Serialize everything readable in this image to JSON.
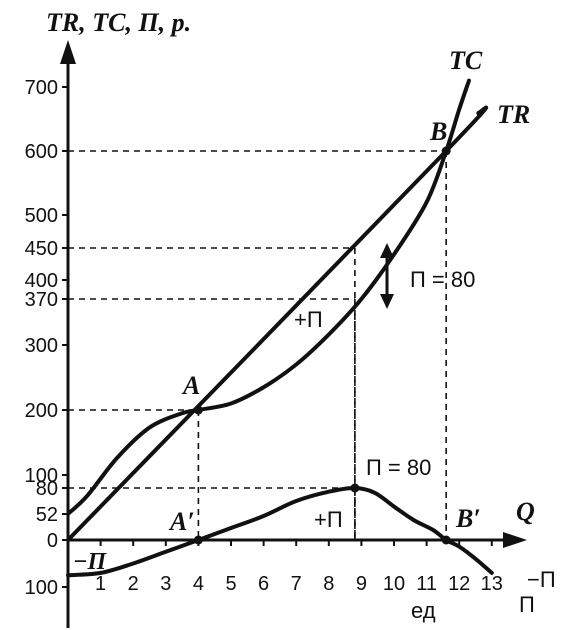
{
  "chart_data": {
    "type": "line",
    "y_title": "TR, TC, П, р.",
    "x_title": "Q",
    "x_unit": "ед",
    "xlim": [
      0,
      13.4
    ],
    "ylim": [
      -100,
      700
    ],
    "x_ticks": [
      "1",
      "2",
      "3",
      "4",
      "5",
      "6",
      "7",
      "8",
      "9",
      "10",
      "11",
      "12",
      "13"
    ],
    "y_ticks": [
      {
        "v": 700,
        "t": "700"
      },
      {
        "v": 600,
        "t": "600"
      },
      {
        "v": 500,
        "t": "500"
      },
      {
        "v": 450,
        "t": "450"
      },
      {
        "v": 400,
        "t": "400"
      },
      {
        "v": 370,
        "t": "370"
      },
      {
        "v": 300,
        "t": "300"
      },
      {
        "v": 200,
        "t": "200"
      },
      {
        "v": 100,
        "t": "100"
      },
      {
        "v": 80,
        "t": "80"
      },
      {
        "v": 52,
        "t": "52"
      },
      {
        "v": 0,
        "t": "0"
      },
      {
        "v": -100,
        "t": "100"
      }
    ],
    "series": [
      {
        "name": "TR",
        "points": [
          [
            0,
            0
          ],
          [
            11.6,
            600
          ],
          [
            12.6,
            660
          ]
        ]
      },
      {
        "name": "TC",
        "points": [
          [
            0,
            52
          ],
          [
            0.6,
            72
          ],
          [
            1.5,
            126
          ],
          [
            2.5,
            173
          ],
          [
            3.5,
            195
          ],
          [
            4,
            200
          ],
          [
            5,
            210
          ],
          [
            6,
            235
          ],
          [
            7,
            270
          ],
          [
            8,
            316
          ],
          [
            9,
            370
          ],
          [
            10,
            440
          ],
          [
            11,
            520
          ],
          [
            11.6,
            600
          ],
          [
            12,
            665
          ],
          [
            12.3,
            710
          ]
        ]
      },
      {
        "name": "П",
        "points": [
          [
            0,
            -75
          ],
          [
            1,
            -70
          ],
          [
            2,
            -50
          ],
          [
            3,
            -25
          ],
          [
            4,
            0
          ],
          [
            5,
            24
          ],
          [
            6,
            48
          ],
          [
            7,
            66
          ],
          [
            8,
            76
          ],
          [
            8.8,
            80
          ],
          [
            9.4,
            75
          ],
          [
            10,
            60
          ],
          [
            10.6,
            40
          ],
          [
            11.2,
            20
          ],
          [
            11.6,
            0
          ],
          [
            12,
            -14
          ],
          [
            12.5,
            -40
          ],
          [
            13,
            -70
          ]
        ]
      }
    ],
    "guides": [
      {
        "x": 4,
        "y": 200
      },
      {
        "x": 8.8,
        "y": 450
      },
      {
        "x": 8.8,
        "y": 370
      },
      {
        "x": 11.6,
        "y": 600
      },
      {
        "x": 8.8,
        "y": 80
      }
    ],
    "annotations": {
      "A": "A",
      "A_prime": "A′",
      "B": "B",
      "B_prime": "B′",
      "profit_gap": "П = 80",
      "profit_peak": "П = 80",
      "plus_p_upper": "+П",
      "plus_p_lower": "+П",
      "minus_p_left": "−П",
      "minus_p_right": "−П",
      "p_label": "П",
      "tc_label": "TC",
      "tr_label": "TR"
    }
  }
}
